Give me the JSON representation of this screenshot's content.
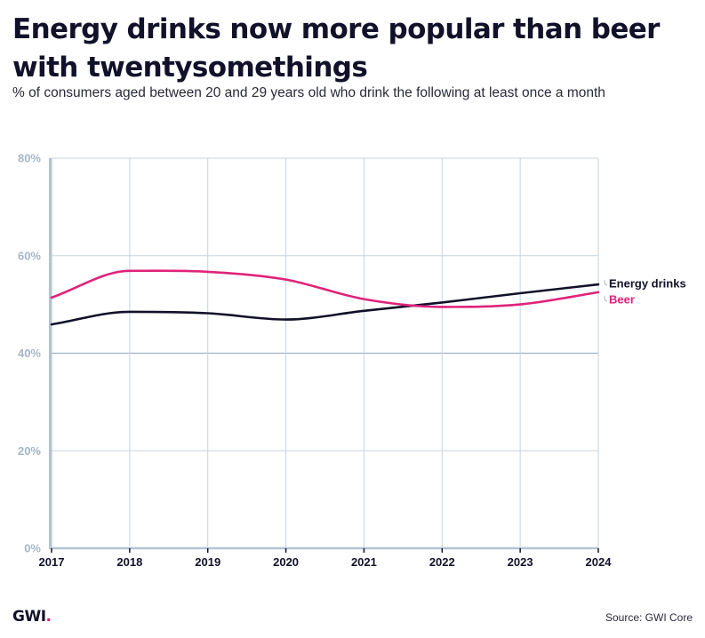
{
  "header": {
    "title": "Energy drinks now more popular than beer with twentysomethings",
    "subtitle": "% of consumers aged between 20 and 29 years old who drink the following at least once a month"
  },
  "footer": {
    "logo_text": "GWI",
    "logo_dot": ".",
    "source": "Source: GWI Core"
  },
  "colors": {
    "energy": "#12112a",
    "beer": "#e0237a",
    "grid": "#c5d3e0",
    "axis": "#b3c3d4",
    "tick_label": "#a6b6c8",
    "brand_accent": "#e0237a"
  },
  "chart_data": {
    "type": "line",
    "title": "Energy drinks now more popular than beer with twentysomethings",
    "subtitle": "% of consumers aged between 20 and 29 years old who drink the following at least once a month",
    "xlabel": "",
    "ylabel": "",
    "x": [
      "2017",
      "2018",
      "2019",
      "2020",
      "2021",
      "2022",
      "2023",
      "2024"
    ],
    "ylim": [
      0,
      80
    ],
    "yticks": [
      0,
      20,
      40,
      60,
      80
    ],
    "ytick_labels": [
      "0%",
      "20%",
      "40%",
      "60%",
      "80%"
    ],
    "grid": true,
    "legend": "right-end labels",
    "series": [
      {
        "name": "Energy drinks",
        "color": "#12112a",
        "values": [
          45.9,
          48.5,
          48.2,
          46.9,
          48.7,
          50.4,
          52.3,
          54.1
        ]
      },
      {
        "name": "Beer",
        "color": "#e0237a",
        "values": [
          51.4,
          56.9,
          56.7,
          55.1,
          51.1,
          49.5,
          50.0,
          52.5
        ]
      }
    ]
  }
}
